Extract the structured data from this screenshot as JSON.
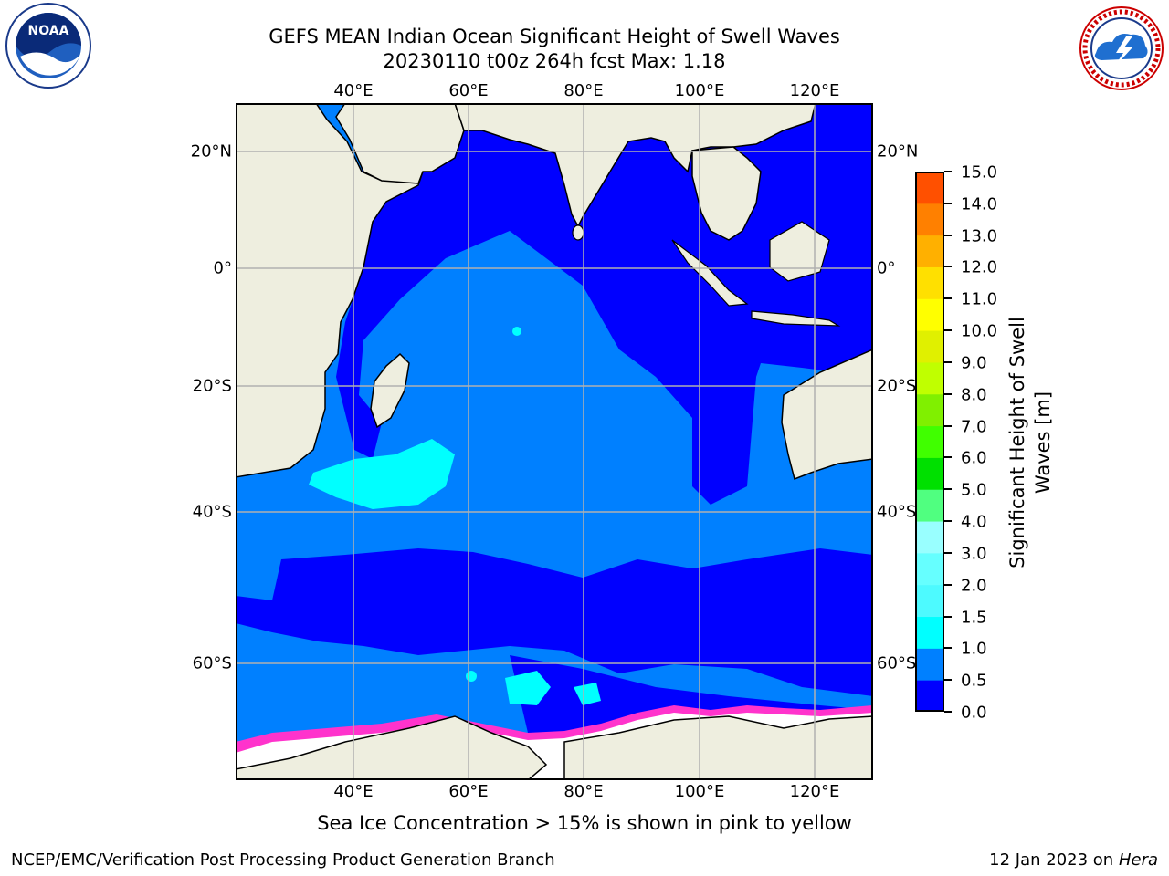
{
  "title": {
    "line1": "GEFS MEAN Indian Ocean Significant Height of Swell Waves",
    "line2": "20230110 t00z 264h fcst   Max: 1.18"
  },
  "logos": {
    "left_icon": "noaa-logo",
    "left_text": "NOAA",
    "right_icon": "nws-logo"
  },
  "map": {
    "lon_labels": [
      "40°E",
      "60°E",
      "80°E",
      "100°E",
      "120°E"
    ],
    "lat_labels": [
      "20°N",
      "0°",
      "20°S",
      "40°S",
      "60°S"
    ],
    "colors": {
      "land": "#eeeedf",
      "ocean_0_05": "#0000ff",
      "ocean_05_10": "#0080ff",
      "ocean_10_15": "#00ffff",
      "grid": "#b0b0b0",
      "ice": "#ffffff",
      "ice_edge": "#ff33cc"
    }
  },
  "colorbar": {
    "title": "Significant Height of Swell Waves [m]",
    "tick_labels": [
      "15.0",
      "14.0",
      "13.0",
      "12.0",
      "11.0",
      "10.0",
      "9.0",
      "8.0",
      "7.0",
      "6.0",
      "5.0",
      "4.0",
      "3.0",
      "2.0",
      "1.5",
      "1.0",
      "0.5",
      "0.0"
    ],
    "colors": [
      "#0000ff",
      "#0080ff",
      "#00ffff",
      "#4dfaff",
      "#66ffff",
      "#99ffff",
      "#50ff80",
      "#00e000",
      "#40ff00",
      "#80f000",
      "#c0ff00",
      "#e0f000",
      "#ffff00",
      "#ffe000",
      "#ffb000",
      "#ff8000",
      "#ff5000",
      "#ff2000",
      "#ff0000"
    ]
  },
  "caption": "Sea Ice Concentration > 15% is shown in pink to yellow",
  "footer": {
    "left": "NCEP/EMC/Verification Post Processing Product Generation Branch",
    "right_prefix": "12 Jan 2023 on ",
    "right_host": "Hera"
  }
}
